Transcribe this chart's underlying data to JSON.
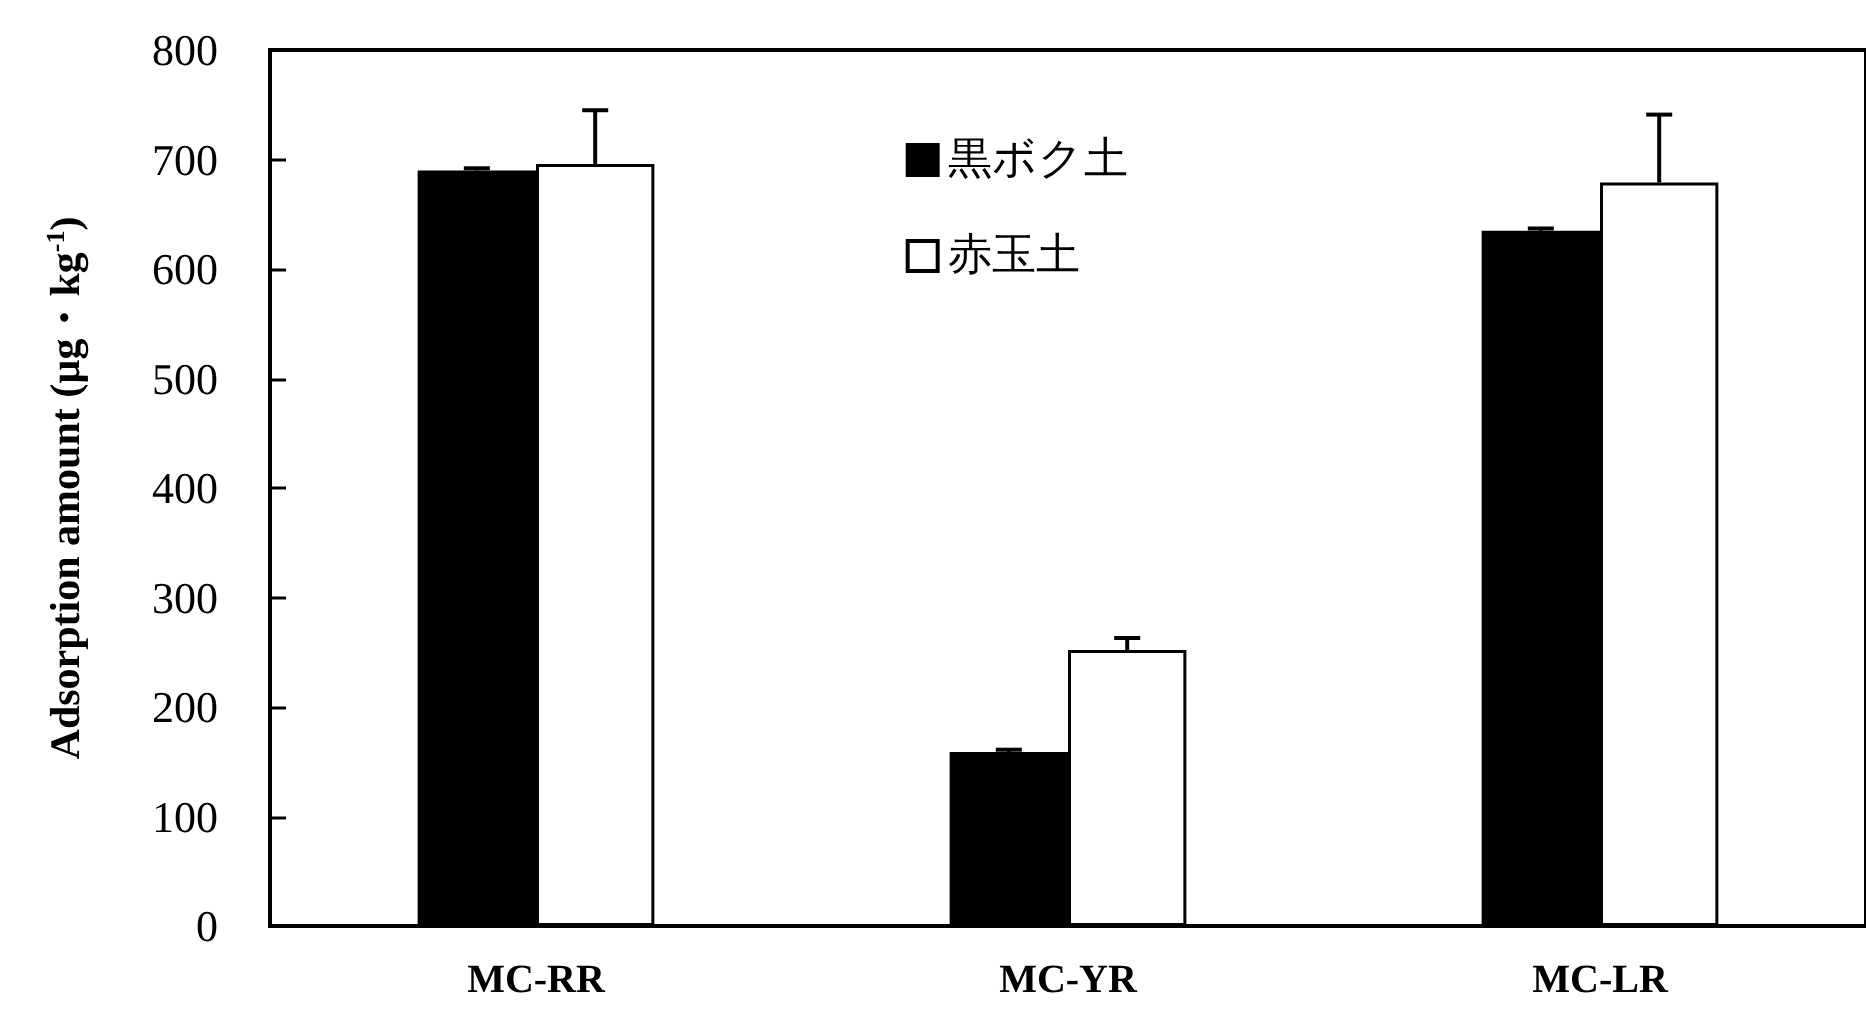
{
  "chart_data": {
    "type": "bar",
    "ylabel": "Adsorption amount (µg・kg$^{-1}$)",
    "categories": [
      "MC-RR",
      "MC-YR",
      "MC-LR"
    ],
    "series": [
      {
        "name": "黒ボク土",
        "color": "#000000",
        "values": [
          690,
          159,
          635
        ],
        "errors": [
          [
            690,
            692
          ],
          [
            159,
            161
          ],
          [
            635,
            637
          ]
        ]
      },
      {
        "name": "赤玉土",
        "color": "#ffffff",
        "values": [
          696,
          252,
          679
        ],
        "errors": [
          [
            696,
            745
          ],
          [
            252,
            263
          ],
          [
            679,
            741
          ]
        ]
      }
    ],
    "ylim": [
      0,
      800
    ],
    "yticks": [
      0,
      100,
      200,
      300,
      400,
      500,
      600,
      700,
      800
    ],
    "legend": "top"
  }
}
